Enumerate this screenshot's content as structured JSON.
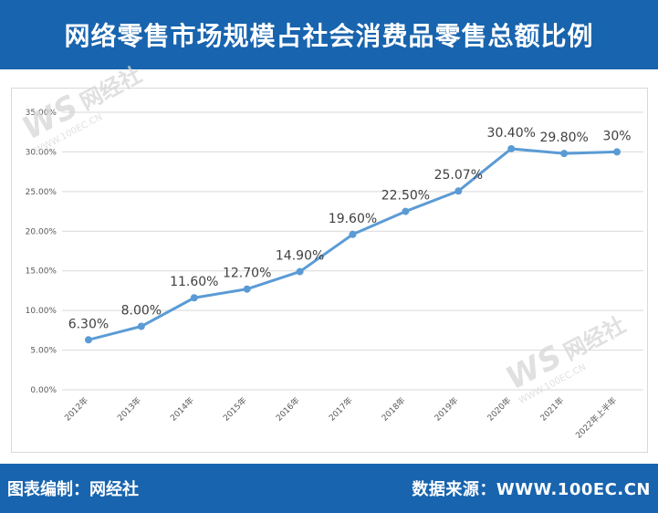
{
  "header": {
    "title": "网络零售市场规模占社会消费品零售总额比例"
  },
  "footer": {
    "left_text": "图表编制：网经社",
    "right_text": "数据来源：WWW.100EC.CN"
  },
  "watermark": {
    "logo": "WS",
    "brand": "网经社",
    "site": "WWW.100EC.CN"
  },
  "colors": {
    "header_bg": "#1864ae",
    "line": "#5b9bd5",
    "grid": "#d9d9d9"
  },
  "chart_data": {
    "type": "line",
    "title": "",
    "xlabel": "",
    "ylabel": "",
    "categories": [
      "2012年",
      "2013年",
      "2014年",
      "2015年",
      "2016年",
      "2017年",
      "2018年",
      "2019年",
      "2020年",
      "2021年",
      "2022年上半年"
    ],
    "series": [
      {
        "values": [
          6.3,
          8.0,
          11.6,
          12.7,
          14.9,
          19.6,
          22.5,
          25.07,
          30.4,
          29.8,
          30.0
        ]
      }
    ],
    "data_labels": [
      "6.30%",
      "8.00%",
      "11.60%",
      "12.70%",
      "14.90%",
      "19.60%",
      "22.50%",
      "25.07%",
      "30.40%",
      "29.80%",
      "30%"
    ],
    "ylim": [
      0,
      35
    ],
    "yticks": [
      0,
      5,
      10,
      15,
      20,
      25,
      30,
      35
    ],
    "ytick_labels": [
      "0.00%",
      "5.00%",
      "10.00%",
      "15.00%",
      "20.00%",
      "25.00%",
      "30.00%",
      "35.00%"
    ],
    "grid": true,
    "legend": "none"
  }
}
